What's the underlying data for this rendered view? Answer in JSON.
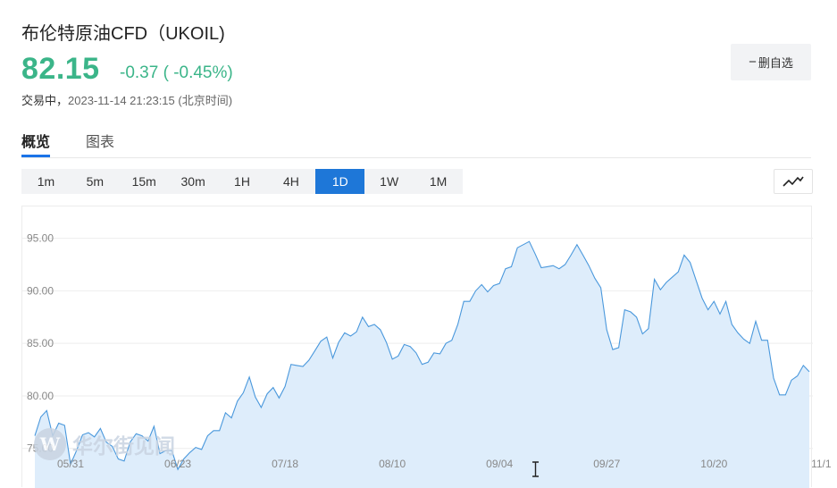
{
  "header": {
    "title": "布伦特原油CFD（UKOIL)",
    "price": "82.15",
    "change": "-0.37 ( -0.45%)",
    "status_label": "交易中，",
    "timestamp": "2023-11-14 21:23:15 (北京时间)"
  },
  "watchlist_button": {
    "icon": "minus-icon",
    "label": "删自选"
  },
  "tabs": [
    {
      "label": "概览",
      "active": true
    },
    {
      "label": "图表",
      "active": false
    }
  ],
  "periods": [
    {
      "label": "1m",
      "active": false
    },
    {
      "label": "5m",
      "active": false
    },
    {
      "label": "15m",
      "active": false
    },
    {
      "label": "30m",
      "active": false
    },
    {
      "label": "1H",
      "active": false
    },
    {
      "label": "4H",
      "active": false
    },
    {
      "label": "1D",
      "active": true
    },
    {
      "label": "1W",
      "active": false
    },
    {
      "label": "1M",
      "active": false
    }
  ],
  "chart_type_icon": "line-chart-icon",
  "watermark": "华尔街见闻",
  "colors": {
    "accent": "#1e77d8",
    "down": "#3bb589",
    "line": "#4a98dc",
    "fill": "#deedfb"
  },
  "chart_data": {
    "type": "area",
    "ylim": [
      72,
      96.5
    ],
    "yticks": [
      "95.00",
      "90.00",
      "85.00",
      "80.00",
      "75.00"
    ],
    "ytick_values": [
      95,
      90,
      85,
      80,
      75
    ],
    "xticks": [
      "05/31",
      "06/23",
      "07/18",
      "08/10",
      "09/04",
      "09/27",
      "10/20",
      "11/1"
    ],
    "xtick_index": [
      6,
      24,
      42,
      60,
      78,
      96,
      114,
      132
    ],
    "grid": true,
    "values": [
      76.2,
      78.0,
      78.6,
      76.2,
      77.4,
      77.2,
      73.5,
      74.8,
      76.3,
      76.5,
      76.1,
      76.9,
      75.6,
      75.2,
      74.0,
      73.8,
      75.6,
      76.4,
      76.2,
      75.7,
      77.1,
      74.5,
      74.8,
      74.8,
      73.0,
      74.0,
      74.6,
      75.1,
      74.9,
      76.2,
      76.7,
      76.7,
      78.4,
      77.9,
      79.5,
      80.3,
      81.8,
      79.9,
      78.9,
      80.2,
      80.8,
      79.8,
      80.9,
      83.0,
      82.9,
      82.8,
      83.4,
      84.3,
      85.2,
      85.6,
      83.6,
      85.1,
      86.0,
      85.7,
      86.1,
      87.5,
      86.6,
      86.8,
      86.3,
      85.1,
      83.5,
      83.8,
      84.9,
      84.7,
      84.1,
      83.0,
      83.2,
      84.1,
      84.0,
      85.0,
      85.3,
      86.8,
      89.0,
      89.0,
      90.0,
      90.6,
      89.9,
      90.5,
      90.7,
      92.1,
      92.3,
      94.1,
      94.4,
      94.7,
      93.5,
      92.2,
      92.3,
      92.4,
      92.1,
      92.5,
      93.4,
      94.4,
      93.4,
      92.4,
      91.2,
      90.3,
      86.3,
      84.4,
      84.6,
      88.2,
      88.0,
      87.5,
      85.9,
      86.4,
      91.1,
      90.1,
      90.8,
      91.3,
      91.8,
      93.4,
      92.7,
      91.0,
      89.3,
      88.2,
      89.0,
      87.8,
      89.0,
      86.8,
      86.0,
      85.4,
      85.0,
      87.1,
      85.3,
      85.3,
      81.7,
      80.1,
      80.1,
      81.5,
      81.9,
      82.9,
      82.3
    ]
  }
}
